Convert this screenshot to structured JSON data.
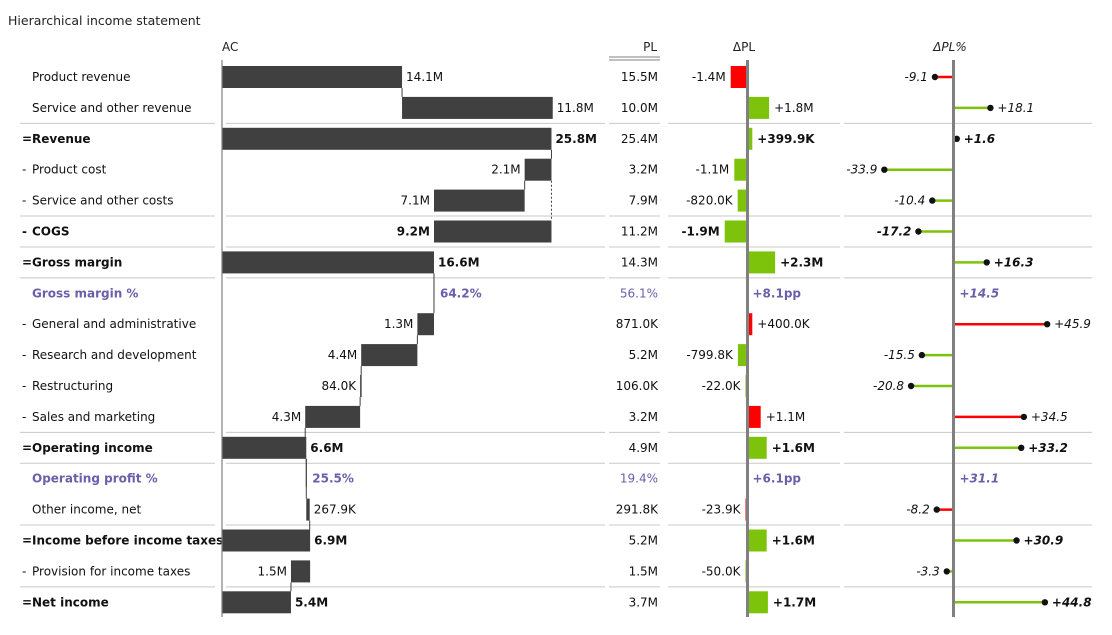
{
  "chart_data": {
    "type": "table",
    "title": "Hierarchical income statement",
    "columns": {
      "ac": "AC",
      "pl": "PL",
      "dpl": "ΔPL",
      "dplp": "ΔPL%"
    },
    "colors": {
      "bar": "#404040",
      "positive": "#7dc30b",
      "negative": "#ff0000",
      "percent_row": "#6a5faa",
      "axis": "#808080"
    },
    "rows": [
      {
        "label": "Product revenue",
        "prefix": "",
        "bold": false,
        "kind": "normal",
        "ac": 14.1,
        "ac_text": "14.1M",
        "pl_text": "15.5M",
        "dpl": -1.4,
        "dpl_text": "-1.4M",
        "dplp": -9.1,
        "dplp_text": "-9.1",
        "sep": false
      },
      {
        "label": "Service and other revenue",
        "prefix": "",
        "bold": false,
        "kind": "normal",
        "ac": 11.8,
        "ac_text": "11.8M",
        "pl_text": "10.0M",
        "dpl": 1.8,
        "dpl_text": "+1.8M",
        "dplp": 18.1,
        "dplp_text": "+18.1",
        "sep": true
      },
      {
        "label": "Revenue",
        "prefix": "=",
        "bold": true,
        "kind": "total",
        "ac": 25.8,
        "ac_text": "25.8M",
        "pl_text": "25.4M",
        "dpl": 0.3999,
        "dpl_text": "+399.9K",
        "dplp": 1.6,
        "dplp_text": "+1.6",
        "sep": false
      },
      {
        "label": "Product cost",
        "prefix": "-",
        "bold": false,
        "kind": "normal",
        "ac": 2.1,
        "ac_text": "2.1M",
        "pl_text": "3.2M",
        "dpl": -1.1,
        "dpl_text": "-1.1M",
        "dplp": -33.9,
        "dplp_text": "-33.9",
        "sep": false
      },
      {
        "label": "Service and other costs",
        "prefix": "-",
        "bold": false,
        "kind": "normal",
        "ac": 7.1,
        "ac_text": "7.1M",
        "pl_text": "7.9M",
        "dpl": -0.82,
        "dpl_text": "-820.0K",
        "dplp": -10.4,
        "dplp_text": "-10.4",
        "sep": true
      },
      {
        "label": "COGS",
        "prefix": "-",
        "bold": true,
        "kind": "total",
        "ac": 9.2,
        "ac_text": "9.2M",
        "pl_text": "11.2M",
        "dpl": -1.9,
        "dpl_text": "-1.9M",
        "dplp": -17.2,
        "dplp_text": "-17.2",
        "sep": true
      },
      {
        "label": "Gross margin",
        "prefix": "=",
        "bold": true,
        "kind": "total",
        "ac": 16.6,
        "ac_text": "16.6M",
        "pl_text": "14.3M",
        "dpl": 2.3,
        "dpl_text": "+2.3M",
        "dplp": 16.3,
        "dplp_text": "+16.3",
        "sep": true
      },
      {
        "label": "Gross margin %",
        "prefix": "",
        "bold": true,
        "kind": "percent",
        "ac": 0,
        "ac_text": "64.2%",
        "pl_text": "56.1%",
        "dpl": 0,
        "dpl_text": "+8.1pp",
        "dplp": 0,
        "dplp_text": "+14.5",
        "sep": false
      },
      {
        "label": "General and administrative",
        "prefix": "-",
        "bold": false,
        "kind": "normal",
        "ac": 1.3,
        "ac_text": "1.3M",
        "pl_text": "871.0K",
        "dpl": 0.4,
        "dpl_text": "+400.0K",
        "dplp": 45.9,
        "dplp_text": "+45.9",
        "sep": false
      },
      {
        "label": "Research and development",
        "prefix": "-",
        "bold": false,
        "kind": "normal",
        "ac": 4.4,
        "ac_text": "4.4M",
        "pl_text": "5.2M",
        "dpl": -0.7998,
        "dpl_text": "-799.8K",
        "dplp": -15.5,
        "dplp_text": "-15.5",
        "sep": false
      },
      {
        "label": "Restructuring",
        "prefix": "-",
        "bold": false,
        "kind": "normal",
        "ac": 0.084,
        "ac_text": "84.0K",
        "pl_text": "106.0K",
        "dpl": -0.022,
        "dpl_text": "-22.0K",
        "dplp": -20.8,
        "dplp_text": "-20.8",
        "sep": false
      },
      {
        "label": "Sales and marketing",
        "prefix": "-",
        "bold": false,
        "kind": "normal",
        "ac": 4.3,
        "ac_text": "4.3M",
        "pl_text": "3.2M",
        "dpl": 1.1,
        "dpl_text": "+1.1M",
        "dplp": 34.5,
        "dplp_text": "+34.5",
        "sep": true
      },
      {
        "label": "Operating income",
        "prefix": "=",
        "bold": true,
        "kind": "total",
        "ac": 6.6,
        "ac_text": "6.6M",
        "pl_text": "4.9M",
        "dpl": 1.6,
        "dpl_text": "+1.6M",
        "dplp": 33.2,
        "dplp_text": "+33.2",
        "sep": true
      },
      {
        "label": "Operating profit %",
        "prefix": "",
        "bold": true,
        "kind": "percent",
        "ac": 0,
        "ac_text": "25.5%",
        "pl_text": "19.4%",
        "dpl": 0,
        "dpl_text": "+6.1pp",
        "dplp": 0,
        "dplp_text": "+31.1",
        "sep": false
      },
      {
        "label": "Other income, net",
        "prefix": "",
        "bold": false,
        "kind": "normal",
        "ac": 0.2679,
        "ac_text": "267.9K",
        "pl_text": "291.8K",
        "dpl": -0.0239,
        "dpl_text": "-23.9K",
        "dplp": -8.2,
        "dplp_text": "-8.2",
        "sep": true
      },
      {
        "label": "Income before income taxes",
        "prefix": "=",
        "bold": true,
        "kind": "total",
        "ac": 6.9,
        "ac_text": "6.9M",
        "pl_text": "5.2M",
        "dpl": 1.6,
        "dpl_text": "+1.6M",
        "dplp": 30.9,
        "dplp_text": "+30.9",
        "sep": false
      },
      {
        "label": "Provision for income taxes",
        "prefix": "-",
        "bold": false,
        "kind": "normal",
        "ac": 1.5,
        "ac_text": "1.5M",
        "pl_text": "1.5M",
        "dpl": -0.05,
        "dpl_text": "-50.0K",
        "dplp": -3.3,
        "dplp_text": "-3.3",
        "sep": true
      },
      {
        "label": "Net income",
        "prefix": "=",
        "bold": true,
        "kind": "total",
        "ac": 5.4,
        "ac_text": "5.4M",
        "pl_text": "3.7M",
        "dpl": 1.7,
        "dpl_text": "+1.7M",
        "dplp": 44.8,
        "dplp_text": "+44.8",
        "sep": false
      }
    ]
  }
}
